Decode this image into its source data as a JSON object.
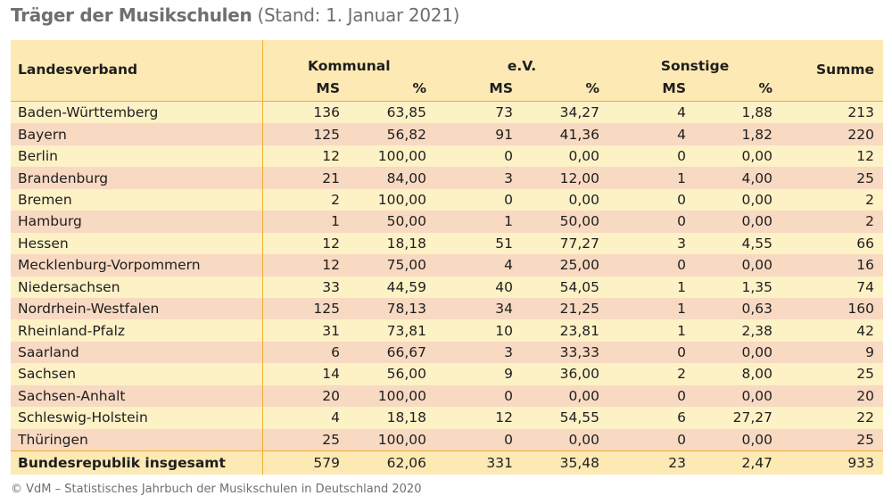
{
  "title": {
    "main": "Träger der Musikschulen",
    "sub": "(Stand: 1. Januar 2021)"
  },
  "table": {
    "col_landesverband": "Landesverband",
    "group_kommunal": "Kommunal",
    "group_ev": "e.V.",
    "group_sonstige": "Sonstige",
    "col_summe": "Summe",
    "sub_ms": "MS",
    "sub_pct": "%",
    "rows": [
      [
        "Baden-Württemberg",
        "136",
        "63,85",
        "73",
        "34,27",
        "4",
        "1,88",
        "213"
      ],
      [
        "Bayern",
        "125",
        "56,82",
        "91",
        "41,36",
        "4",
        "1,82",
        "220"
      ],
      [
        "Berlin",
        "12",
        "100,00",
        "0",
        "0,00",
        "0",
        "0,00",
        "12"
      ],
      [
        "Brandenburg",
        "21",
        "84,00",
        "3",
        "12,00",
        "1",
        "4,00",
        "25"
      ],
      [
        "Bremen",
        "2",
        "100,00",
        "0",
        "0,00",
        "0",
        "0,00",
        "2"
      ],
      [
        "Hamburg",
        "1",
        "50,00",
        "1",
        "50,00",
        "0",
        "0,00",
        "2"
      ],
      [
        "Hessen",
        "12",
        "18,18",
        "51",
        "77,27",
        "3",
        "4,55",
        "66"
      ],
      [
        "Mecklenburg-Vorpommern",
        "12",
        "75,00",
        "4",
        "25,00",
        "0",
        "0,00",
        "16"
      ],
      [
        "Niedersachsen",
        "33",
        "44,59",
        "40",
        "54,05",
        "1",
        "1,35",
        "74"
      ],
      [
        "Nordrhein-Westfalen",
        "125",
        "78,13",
        "34",
        "21,25",
        "1",
        "0,63",
        "160"
      ],
      [
        "Rheinland-Pfalz",
        "31",
        "73,81",
        "10",
        "23,81",
        "1",
        "2,38",
        "42"
      ],
      [
        "Saarland",
        "6",
        "66,67",
        "3",
        "33,33",
        "0",
        "0,00",
        "9"
      ],
      [
        "Sachsen",
        "14",
        "56,00",
        "9",
        "36,00",
        "2",
        "8,00",
        "25"
      ],
      [
        "Sachsen-Anhalt",
        "20",
        "100,00",
        "0",
        "0,00",
        "0",
        "0,00",
        "20"
      ],
      [
        "Schleswig-Holstein",
        "4",
        "18,18",
        "12",
        "54,55",
        "6",
        "27,27",
        "22"
      ],
      [
        "Thüringen",
        "25",
        "100,00",
        "0",
        "0,00",
        "0",
        "0,00",
        "25"
      ]
    ],
    "total": [
      "Bundesrepublik insgesamt",
      "579",
      "62,06",
      "331",
      "35,48",
      "23",
      "2,47",
      "933"
    ]
  },
  "footer": "© VdM – Statistisches Jahrbuch der Musikschulen in Deutschland 2020",
  "colors": {
    "header_bg": "#fce9b4",
    "row_odd": "#fdf1c6",
    "row_even": "#f8d9c2",
    "rule": "#f0b030",
    "title_text": "#6f6f6f"
  }
}
